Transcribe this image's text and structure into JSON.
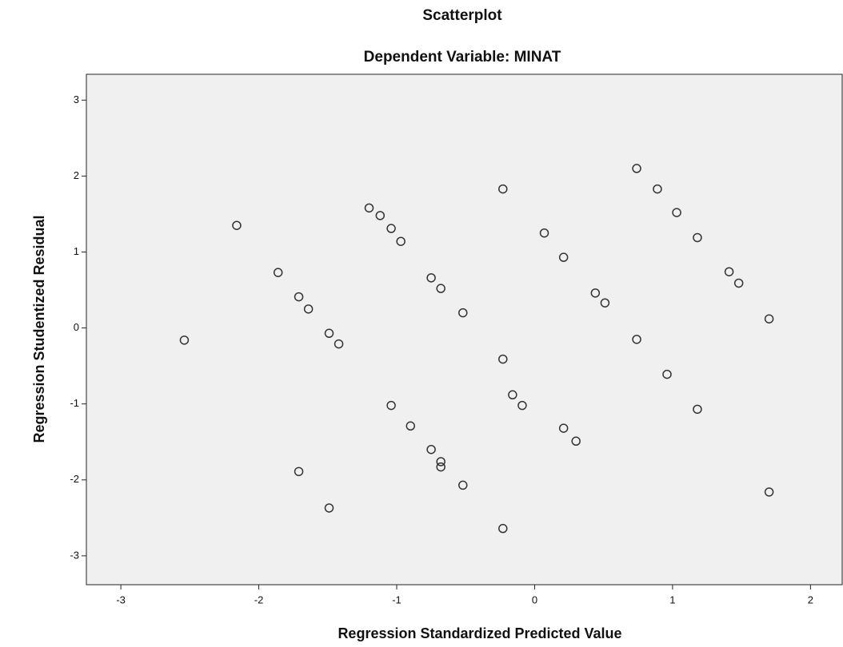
{
  "chart_data": {
    "type": "scatter",
    "title": "Scatterplot",
    "subtitle": "Dependent Variable: MINAT",
    "x_label": "Regression Standardized Predicted Value",
    "y_label": "Regression Studentized Residual",
    "xlim": [
      -3.25,
      2.23
    ],
    "ylim": [
      -3.38,
      3.34
    ],
    "xticks": [
      -3,
      -2,
      -1,
      0,
      1,
      2
    ],
    "yticks": [
      -3,
      -2,
      -1,
      0,
      1,
      2,
      3
    ],
    "color": "#333333",
    "background": "#f0f0f0",
    "x": [
      -2.54,
      -2.16,
      -1.86,
      -1.71,
      -1.64,
      -1.49,
      -1.42,
      -1.71,
      -1.49,
      -1.2,
      -1.12,
      -1.04,
      -0.97,
      -1.04,
      -0.9,
      -0.75,
      -0.68,
      -0.52,
      -0.75,
      -0.68,
      -0.68,
      -0.52,
      -0.23,
      -0.23,
      -0.23,
      -0.16,
      -0.09,
      0.07,
      0.21,
      0.21,
      0.3,
      0.44,
      0.51,
      0.74,
      0.74,
      0.89,
      1.03,
      1.18,
      0.96,
      1.18,
      1.41,
      1.48,
      1.7,
      1.7
    ],
    "y": [
      -0.16,
      1.35,
      0.73,
      0.41,
      0.25,
      -0.07,
      -0.21,
      -1.89,
      -2.37,
      1.58,
      1.48,
      1.31,
      1.14,
      -1.02,
      -1.29,
      0.66,
      0.52,
      0.2,
      -1.6,
      -1.76,
      -1.83,
      -2.07,
      1.83,
      -0.41,
      -2.64,
      -0.88,
      -1.02,
      1.25,
      0.93,
      -1.32,
      -1.49,
      0.46,
      0.33,
      2.1,
      -0.15,
      1.83,
      1.52,
      1.19,
      -0.61,
      -1.07,
      0.74,
      0.59,
      0.12,
      -2.16
    ]
  }
}
